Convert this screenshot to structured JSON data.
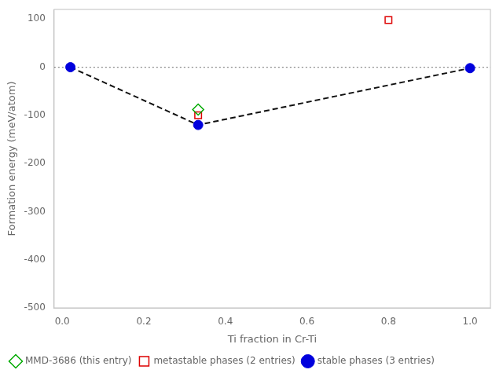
{
  "chart_data": {
    "type": "scatter",
    "xlabel": "Ti fraction in Cr-Ti",
    "ylabel": "Formation energy (meV/atom)",
    "xlim": [
      -0.02,
      1.05
    ],
    "ylim": [
      -500,
      120
    ],
    "xticks": [
      {
        "value": 0.0,
        "label": "0.0"
      },
      0.2,
      0.4,
      0.6,
      0.8,
      {
        "value": 1.0,
        "label": "1.0"
      }
    ],
    "yticks": [
      100,
      0,
      -100,
      -200,
      -300,
      -400,
      -500
    ],
    "grid": false,
    "legend": "lower left",
    "series": [
      {
        "type": "hline",
        "values": [
          0
        ],
        "color": "#888888",
        "line_style": "dotted"
      },
      {
        "type": "line",
        "x": [
          0.02,
          0.3333,
          1.0
        ],
        "values": [
          0.0,
          -120.0,
          -2.0
        ],
        "color": "#111111",
        "line_style": "dashed"
      },
      {
        "name": "stable phases (3 entries)",
        "type": "scatter",
        "marker": "circle",
        "color": "#0000dd",
        "x": [
          0.02,
          0.3333,
          1.0
        ],
        "values": [
          0.0,
          -120.0,
          -2.0
        ]
      },
      {
        "name": "metastable phases (2 entries)",
        "type": "scatter",
        "marker": "open-square",
        "color": "#dd0000",
        "x": [
          0.3333,
          0.8
        ],
        "values": [
          -100.0,
          98.0
        ]
      },
      {
        "name": "MMD-3686 (this entry)",
        "type": "scatter",
        "marker": "open-diamond",
        "color": "#00aa00",
        "x": [
          0.3333
        ],
        "values": [
          -88.0
        ]
      }
    ]
  }
}
